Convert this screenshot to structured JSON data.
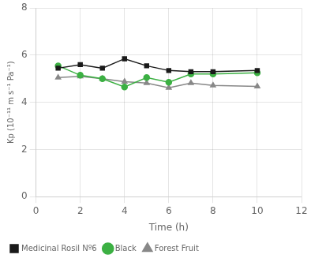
{
  "chart_data": {
    "type": "line",
    "xlabel": "Time (h)",
    "ylabel": "Kp (10⁻¹¹ m s⁻¹ Pa⁻¹)",
    "series": [
      {
        "name": "Medicinal Rosil Nº6",
        "color": "#1a1a1a",
        "marker": "square",
        "x": [
          1,
          2,
          3,
          4,
          5,
          6,
          7,
          8,
          10
        ],
        "values": [
          5.45,
          5.6,
          5.45,
          5.85,
          5.55,
          5.35,
          5.3,
          5.3,
          5.35
        ]
      },
      {
        "name": "Black",
        "color": "#3cb043",
        "marker": "circle",
        "x": [
          1,
          2,
          3,
          4,
          5,
          6,
          7,
          8,
          10
        ],
        "values": [
          5.55,
          5.15,
          5.0,
          4.65,
          5.05,
          4.85,
          5.2,
          5.2,
          5.25
        ]
      },
      {
        "name": "Forest Fruit",
        "color": "#888888",
        "marker": "triangle",
        "x": [
          1,
          2,
          3,
          4,
          5,
          6,
          7,
          8,
          10
        ],
        "values": [
          5.05,
          5.1,
          5.0,
          4.88,
          4.82,
          4.62,
          4.82,
          4.72,
          4.68
        ]
      }
    ],
    "xlim": [
      0,
      12
    ],
    "xticks": [
      0,
      2,
      4,
      6,
      8,
      10,
      12
    ],
    "ylim": [
      0,
      8
    ],
    "yticks": [
      0,
      2,
      4,
      6,
      8
    ],
    "grid": true,
    "legend": "lower left"
  }
}
